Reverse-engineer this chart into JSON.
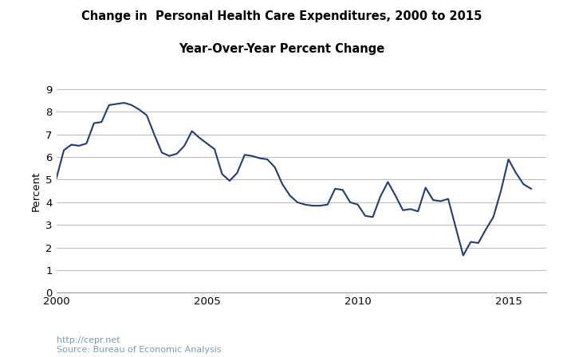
{
  "title_line1": "Change in  Personal Health Care Expenditures, 2000 to 2015",
  "title_line2": "Year-Over-Year Percent Change",
  "ylabel": "Percent",
  "source_text": "http://cepr.net\nSource: Bureau of Economic Analysis",
  "line_color": "#1F3D7A",
  "background_color": "#ffffff",
  "grid_color": "#bbbbbb",
  "xlim": [
    2000,
    2016.25
  ],
  "ylim": [
    0,
    9
  ],
  "yticks": [
    0,
    1,
    2,
    3,
    4,
    5,
    6,
    7,
    8,
    9
  ],
  "xticks": [
    2000,
    2005,
    2010,
    2015
  ],
  "x": [
    2000.0,
    2000.25,
    2000.5,
    2000.75,
    2001.0,
    2001.25,
    2001.5,
    2001.75,
    2002.0,
    2002.25,
    2002.5,
    2002.75,
    2003.0,
    2003.25,
    2003.5,
    2003.75,
    2004.0,
    2004.25,
    2004.5,
    2004.75,
    2005.0,
    2005.25,
    2005.5,
    2005.75,
    2006.0,
    2006.25,
    2006.5,
    2006.75,
    2007.0,
    2007.25,
    2007.5,
    2007.75,
    2008.0,
    2008.25,
    2008.5,
    2008.75,
    2009.0,
    2009.25,
    2009.5,
    2009.75,
    2010.0,
    2010.25,
    2010.5,
    2010.75,
    2011.0,
    2011.25,
    2011.5,
    2011.75,
    2012.0,
    2012.25,
    2012.5,
    2012.75,
    2013.0,
    2013.25,
    2013.5,
    2013.75,
    2014.0,
    2014.25,
    2014.5,
    2014.75,
    2015.0,
    2015.25,
    2015.5,
    2015.75
  ],
  "y": [
    5.05,
    6.3,
    6.55,
    6.5,
    6.6,
    7.5,
    7.55,
    8.3,
    8.35,
    8.4,
    8.3,
    8.1,
    7.85,
    7.0,
    6.2,
    6.05,
    6.15,
    6.5,
    7.15,
    6.85,
    6.6,
    6.35,
    5.25,
    4.95,
    5.3,
    6.1,
    6.05,
    5.95,
    5.9,
    5.55,
    4.8,
    4.3,
    4.0,
    3.9,
    3.85,
    3.85,
    3.9,
    4.6,
    4.55,
    4.0,
    3.9,
    3.4,
    3.35,
    4.25,
    4.9,
    4.3,
    3.65,
    3.7,
    3.6,
    4.65,
    4.1,
    4.05,
    4.15,
    2.9,
    1.65,
    2.25,
    2.2,
    2.8,
    3.35,
    4.5,
    5.9,
    5.3,
    4.8,
    4.6
  ]
}
